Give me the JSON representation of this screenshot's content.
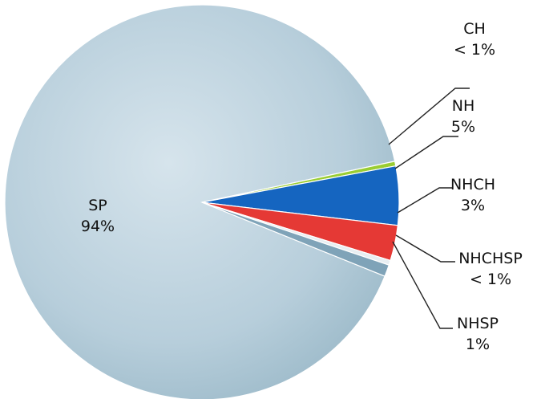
{
  "chart_data": {
    "type": "pie",
    "slices": [
      {
        "label": "SP",
        "value": 94,
        "display": "94%",
        "color": "#b7cedb"
      },
      {
        "label": "CH",
        "value": 0.4,
        "display": "< 1%",
        "color": "#9acd32"
      },
      {
        "label": "NH",
        "value": 5,
        "display": "5%",
        "color": "#1565c0"
      },
      {
        "label": "NHCH",
        "value": 3,
        "display": "3%",
        "color": "#e53935"
      },
      {
        "label": "NHCHSP",
        "value": 0.4,
        "display": "< 1%",
        "color": "#e8eef2"
      },
      {
        "label": "NHSP",
        "value": 1,
        "display": "1%",
        "color": "#7fa3b8"
      }
    ],
    "legend": "none"
  }
}
